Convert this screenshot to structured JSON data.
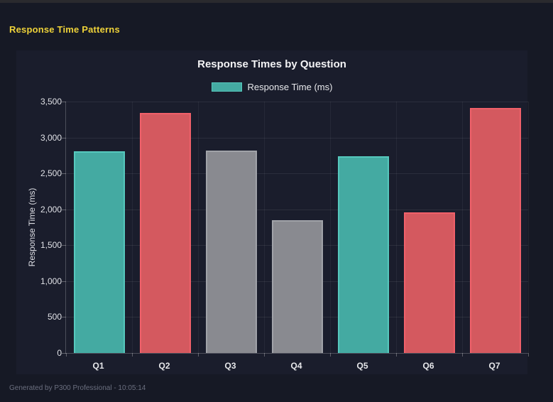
{
  "header": {
    "title": "Response Time Patterns",
    "title_color": "#eed239"
  },
  "footer": {
    "text": "Generated by P300 Professional - 10:05:14"
  },
  "chart": {
    "legend_label": "Response Time (ms)"
  },
  "chart_data": {
    "type": "bar",
    "title": "Response Times by Question",
    "categories": [
      "Q1",
      "Q2",
      "Q3",
      "Q4",
      "Q5",
      "Q6",
      "Q7"
    ],
    "values": [
      2810,
      3340,
      2815,
      1845,
      2740,
      1955,
      3415
    ],
    "bar_colors": [
      "teal",
      "red",
      "gray",
      "gray",
      "teal",
      "red",
      "red"
    ],
    "palette": {
      "teal": {
        "fill": "#44aaa2",
        "border": "#56c8bd"
      },
      "red": {
        "fill": "#d4595f",
        "border": "#f0606a"
      },
      "gray": {
        "fill": "#898a90",
        "border": "#a0a2a8"
      }
    },
    "xlabel": "",
    "ylabel": "Response Time (ms)",
    "ylim": [
      0,
      3500
    ],
    "yticks": [
      {
        "value": 0,
        "label": "0"
      },
      {
        "value": 500,
        "label": "500"
      },
      {
        "value": 1000,
        "label": "1,000"
      },
      {
        "value": 1500,
        "label": "1,500"
      },
      {
        "value": 2000,
        "label": "2,000"
      },
      {
        "value": 2500,
        "label": "2,500"
      },
      {
        "value": 3000,
        "label": "3,000"
      },
      {
        "value": 3500,
        "label": "3,500"
      }
    ],
    "legend_entries": [
      "Response Time (ms)"
    ],
    "legend_position": "top",
    "grid": true
  }
}
